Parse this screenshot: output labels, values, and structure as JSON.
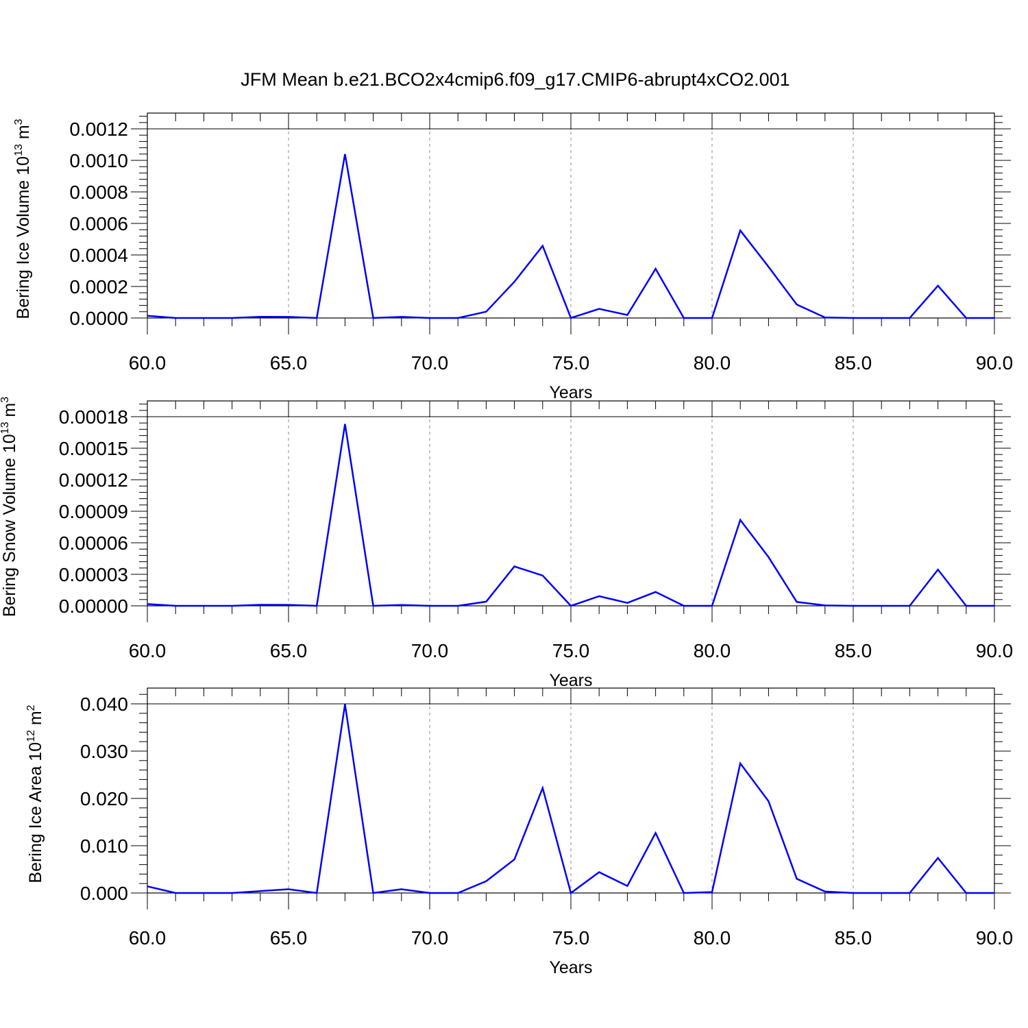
{
  "title": "JFM Mean b.e21.BCO2x4cmip6.f09_g17.CMIP6-abrupt4xCO2.001",
  "line_color": "#0000ff",
  "chart_data": [
    {
      "type": "line",
      "ylabel": "Bering Ice Volume 10",
      "ylabel_exp": "13",
      "ylabel_unit": "m",
      "ylabel_unit_exp": "3",
      "xlabel": "Years",
      "xlim": [
        60,
        90
      ],
      "ylim": [
        0,
        0.0012
      ],
      "x_ticks": [
        "60.0",
        "65.0",
        "70.0",
        "75.0",
        "80.0",
        "85.0",
        "90.0"
      ],
      "y_ticks": [
        "0.0000",
        "0.0002",
        "0.0004",
        "0.0006",
        "0.0008",
        "0.0010",
        "0.0012"
      ],
      "x": [
        60,
        61,
        62,
        63,
        64,
        65,
        66,
        67,
        68,
        69,
        70,
        71,
        72,
        73,
        74,
        75,
        76,
        77,
        78,
        79,
        80,
        81,
        82,
        83,
        84,
        85,
        86,
        87,
        88,
        89,
        90
      ],
      "values": [
        1.4e-05,
        0,
        0,
        0,
        8e-06,
        7e-06,
        0,
        0.00104,
        0,
        7e-06,
        0,
        0,
        4e-05,
        0.00023,
        0.000458,
        0,
        5.8e-05,
        1.9e-05,
        0.000312,
        0,
        0,
        0.000555,
        0.000325,
        8.5e-05,
        3e-06,
        0,
        0,
        0,
        0.000205,
        0,
        0
      ]
    },
    {
      "type": "line",
      "ylabel": "Bering Snow Volume 10",
      "ylabel_exp": "13",
      "ylabel_unit": "m",
      "ylabel_unit_exp": "3",
      "xlabel": "Years",
      "xlim": [
        60,
        90
      ],
      "ylim": [
        0,
        0.00018
      ],
      "x_ticks": [
        "60.0",
        "65.0",
        "70.0",
        "75.0",
        "80.0",
        "85.0",
        "90.0"
      ],
      "y_ticks": [
        "0.00000",
        "0.00003",
        "0.00006",
        "0.00009",
        "0.00012",
        "0.00015",
        "0.00018"
      ],
      "x": [
        60,
        61,
        62,
        63,
        64,
        65,
        66,
        67,
        68,
        69,
        70,
        71,
        72,
        73,
        74,
        75,
        76,
        77,
        78,
        79,
        80,
        81,
        82,
        83,
        84,
        85,
        86,
        87,
        88,
        89,
        90
      ],
      "values": [
        1.7e-06,
        0,
        0,
        0,
        1e-06,
        9e-07,
        0,
        0.000173,
        0,
        8e-07,
        0,
        0,
        4e-06,
        3.75e-05,
        2.88e-05,
        0,
        9.2e-06,
        2.8e-06,
        1.32e-05,
        0,
        0,
        8.17e-05,
        4.64e-05,
        3.7e-06,
        4e-07,
        0,
        0,
        0,
        3.45e-05,
        0,
        0
      ]
    },
    {
      "type": "line",
      "ylabel": "Bering Ice Area 10",
      "ylabel_exp": "12",
      "ylabel_unit": "m",
      "ylabel_unit_exp": "2",
      "xlabel": "Years",
      "xlim": [
        60,
        90
      ],
      "ylim": [
        0,
        0.04
      ],
      "x_ticks": [
        "60.0",
        "65.0",
        "70.0",
        "75.0",
        "80.0",
        "85.0",
        "90.0"
      ],
      "y_ticks": [
        "0.000",
        "0.010",
        "0.020",
        "0.030",
        "0.040"
      ],
      "x": [
        60,
        61,
        62,
        63,
        64,
        65,
        66,
        67,
        68,
        69,
        70,
        71,
        72,
        73,
        74,
        75,
        76,
        77,
        78,
        79,
        80,
        81,
        82,
        83,
        84,
        85,
        86,
        87,
        88,
        89,
        90
      ],
      "values": [
        0.0014,
        0,
        0,
        0,
        0.0004,
        0.0008,
        0,
        0.0399,
        0,
        0.0008,
        0,
        0,
        0.0025,
        0.0071,
        0.0222,
        0,
        0.0044,
        0.0015,
        0.0127,
        0,
        0.0002,
        0.0274,
        0.0194,
        0.003,
        0.0003,
        0,
        0,
        0,
        0.0074,
        0,
        0
      ]
    }
  ]
}
